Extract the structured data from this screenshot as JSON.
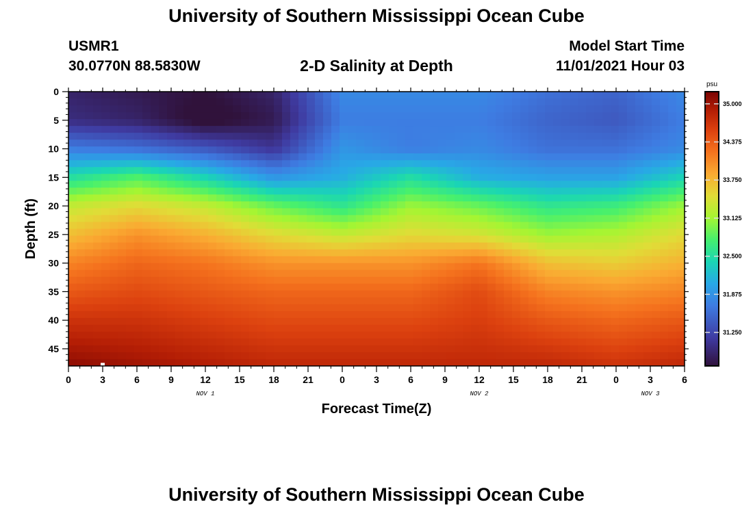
{
  "header": {
    "title": "University of Southern Mississippi Ocean Cube",
    "station_id": "USMR1",
    "station_coords": "30.0770N  88.5830W",
    "plot_title": "2-D Salinity at Depth",
    "model_label": "Model Start Time",
    "model_value": "11/01/2021 Hour 03"
  },
  "footer": {
    "title": "University of Southern Mississippi Ocean Cube"
  },
  "chart_data": {
    "type": "heatmap",
    "title": "2-D Salinity at Depth",
    "xlabel": "Forecast Time(Z)",
    "ylabel": "Depth (ft)",
    "x_hours": [
      0,
      6,
      12,
      18,
      24,
      30,
      36,
      42,
      48,
      54
    ],
    "x_range": [
      0,
      54
    ],
    "x_tick_labels": [
      "0",
      "3",
      "6",
      "9",
      "12",
      "15",
      "18",
      "21",
      "0",
      "3",
      "6",
      "9",
      "12",
      "15",
      "18",
      "21",
      "0",
      "3",
      "6"
    ],
    "day_labels": [
      {
        "label": "NOV 1",
        "hour": 12
      },
      {
        "label": "NOV 2",
        "hour": 36
      },
      {
        "label": "NOV 3",
        "hour": 51
      }
    ],
    "depth_ft": [
      0,
      5,
      10,
      15,
      20,
      25,
      30,
      35,
      40,
      48
    ],
    "y_range": [
      0,
      48
    ],
    "y_tick_labels": [
      "0",
      "5",
      "10",
      "15",
      "20",
      "25",
      "30",
      "35",
      "40",
      "45"
    ],
    "salinity_psu": [
      [
        30.9,
        30.8,
        30.7,
        30.9,
        31.8,
        31.8,
        31.8,
        31.6,
        31.5,
        31.8
      ],
      [
        31.0,
        30.9,
        30.6,
        30.8,
        31.7,
        31.7,
        31.7,
        31.5,
        31.4,
        31.7
      ],
      [
        31.7,
        31.6,
        31.4,
        31.1,
        31.9,
        31.7,
        31.8,
        31.6,
        31.6,
        31.8
      ],
      [
        32.5,
        32.8,
        32.4,
        31.9,
        32.1,
        32.5,
        32.1,
        32.0,
        32.0,
        32.4
      ],
      [
        33.3,
        33.5,
        33.3,
        32.9,
        32.6,
        33.1,
        32.9,
        32.6,
        32.7,
        33.1
      ],
      [
        33.7,
        34.0,
        33.8,
        33.5,
        33.3,
        33.5,
        33.4,
        33.1,
        33.2,
        33.5
      ],
      [
        34.1,
        34.3,
        34.2,
        34.0,
        34.0,
        34.0,
        34.2,
        33.7,
        33.6,
        33.8
      ],
      [
        34.4,
        34.5,
        34.4,
        34.3,
        34.3,
        34.3,
        34.5,
        34.1,
        34.0,
        34.1
      ],
      [
        34.7,
        34.7,
        34.6,
        34.5,
        34.5,
        34.5,
        34.6,
        34.4,
        34.3,
        34.4
      ],
      [
        35.1,
        35.0,
        34.9,
        34.8,
        34.8,
        34.8,
        34.8,
        34.8,
        34.7,
        34.8
      ]
    ],
    "colorbar": {
      "unit": "psu",
      "range": [
        30.7,
        35.2
      ],
      "tick_labels": [
        "35.000",
        "34.375",
        "33.750",
        "33.125",
        "32.500",
        "31.875",
        "31.250"
      ],
      "tick_values": [
        35.0,
        34.375,
        33.75,
        33.125,
        32.5,
        31.875,
        31.25
      ]
    },
    "marker": {
      "hour": 3,
      "depth": 47.7
    }
  }
}
